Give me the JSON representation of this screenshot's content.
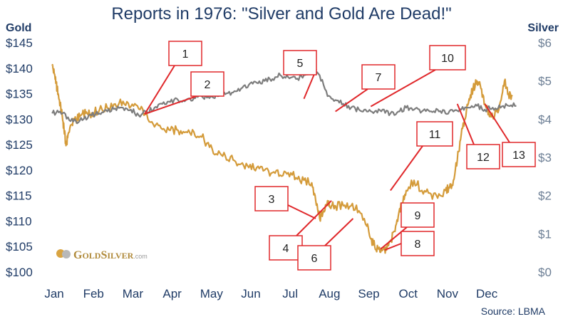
{
  "colors": {
    "gold": "#d49b3a",
    "silver": "#7d7d7d",
    "title": "#1f3b66",
    "annotation": "#e0282b"
  },
  "chart_data": {
    "type": "line",
    "title": "Reports in 1976: \"Silver and Gold Are Dead!\"",
    "ylabel_left": "Gold",
    "ylabel_right": "Silver",
    "ylim_left": [
      100,
      145
    ],
    "ylim_right": [
      0,
      6
    ],
    "y_ticks_left": [
      "$100",
      "$105",
      "$110",
      "$115",
      "$120",
      "$125",
      "$130",
      "$135",
      "$140",
      "$145"
    ],
    "y_ticks_right": [
      "$0",
      "$1",
      "$2",
      "$3",
      "$4",
      "$5",
      "$6"
    ],
    "x_ticks": [
      "Jan",
      "Feb",
      "Mar",
      "Apr",
      "May",
      "Jun",
      "Jul",
      "Aug",
      "Sep",
      "Oct",
      "Nov",
      "Dec"
    ],
    "source": "Source: LBMA",
    "logo": "GoldSilver.com",
    "series": [
      {
        "name": "Gold",
        "axis": "left",
        "x": [
          0.0,
          0.05,
          0.1,
          0.15,
          0.2,
          0.25,
          0.3,
          0.35,
          0.4,
          0.5,
          0.6,
          0.7,
          0.8,
          0.9,
          1.0,
          1.2,
          1.4,
          1.6,
          1.8,
          2.0,
          2.2,
          2.4,
          2.6,
          2.8,
          3.0,
          3.2,
          3.4,
          3.6,
          3.8,
          4.0,
          4.2,
          4.4,
          4.6,
          4.8,
          5.0,
          5.2,
          5.4,
          5.6,
          5.8,
          6.0,
          6.2,
          6.4,
          6.6,
          6.7,
          6.8,
          6.9,
          7.0,
          7.1,
          7.2,
          7.4,
          7.6,
          7.8,
          8.0,
          8.1,
          8.2,
          8.3,
          8.4,
          8.5,
          8.6,
          8.7,
          8.8,
          8.9,
          9.0,
          9.2,
          9.4,
          9.6,
          9.8,
          10.0,
          10.1,
          10.2,
          10.3,
          10.4,
          10.5,
          10.6,
          10.7,
          10.8,
          10.9,
          11.0,
          11.1,
          11.2,
          11.3,
          11.4,
          11.5,
          11.6,
          11.7
        ],
        "y": [
          140.5,
          139.0,
          137.0,
          135.0,
          133.0,
          131.0,
          128.0,
          124.8,
          127.0,
          129.0,
          130.0,
          130.5,
          131.0,
          131.0,
          131.2,
          131.8,
          132.2,
          133.0,
          133.5,
          132.5,
          132.0,
          131.2,
          128.5,
          128.0,
          127.8,
          127.8,
          127.5,
          127.5,
          126.5,
          124.5,
          123.0,
          122.8,
          122.0,
          121.2,
          120.5,
          120.5,
          120.0,
          119.5,
          119.0,
          119.5,
          118.5,
          118.0,
          117.5,
          114.0,
          110.5,
          112.0,
          114.0,
          113.0,
          113.0,
          113.0,
          113.0,
          112.0,
          109.0,
          106.5,
          105.0,
          104.5,
          104.3,
          104.3,
          106.0,
          108.0,
          111.0,
          113.5,
          116.0,
          118.0,
          116.0,
          115.5,
          114.5,
          116.0,
          116.5,
          118.0,
          122.0,
          127.0,
          130.0,
          134.0,
          136.0,
          137.5,
          136.0,
          133.0,
          131.5,
          130.5,
          131.5,
          133.5,
          137.5,
          135.0,
          134.5
        ]
      },
      {
        "name": "Silver",
        "axis": "right",
        "x": [
          0.0,
          0.2,
          0.4,
          0.6,
          0.8,
          1.0,
          1.2,
          1.4,
          1.6,
          1.8,
          2.0,
          2.2,
          2.4,
          2.6,
          2.8,
          3.0,
          3.2,
          3.4,
          3.6,
          3.8,
          4.0,
          4.2,
          4.4,
          4.6,
          4.8,
          5.0,
          5.2,
          5.4,
          5.6,
          5.8,
          6.0,
          6.2,
          6.4,
          6.6,
          6.8,
          7.0,
          7.2,
          7.4,
          7.6,
          7.8,
          8.0,
          8.2,
          8.4,
          8.6,
          8.8,
          9.0,
          9.2,
          9.4,
          9.6,
          9.8,
          10.0,
          10.2,
          10.4,
          10.6,
          10.8,
          11.0,
          11.2,
          11.4,
          11.6,
          11.8
        ],
        "y": [
          4.15,
          4.2,
          4.05,
          3.95,
          4.0,
          4.1,
          4.15,
          4.2,
          4.28,
          4.3,
          4.25,
          4.1,
          4.2,
          4.3,
          4.4,
          4.45,
          4.5,
          4.5,
          4.55,
          4.6,
          4.55,
          4.6,
          4.65,
          4.7,
          4.8,
          4.9,
          4.95,
          5.0,
          5.05,
          5.15,
          5.1,
          5.05,
          5.15,
          5.25,
          5.15,
          4.6,
          4.5,
          4.4,
          4.3,
          4.25,
          4.2,
          4.2,
          4.25,
          4.15,
          4.2,
          4.3,
          4.25,
          4.2,
          4.2,
          4.25,
          4.15,
          4.2,
          4.25,
          4.3,
          4.35,
          4.25,
          4.3,
          4.3,
          4.35,
          4.35
        ]
      }
    ],
    "annotations": [
      {
        "label": "1",
        "point": [
          2.35,
          131.0
        ]
      },
      {
        "label": "2",
        "point": [
          2.35,
          131.0
        ]
      },
      {
        "label": "3",
        "point": [
          6.7,
          110.5
        ]
      },
      {
        "label": "4",
        "point": [
          7.1,
          114.0
        ]
      },
      {
        "label": "5",
        "point": [
          6.4,
          134.0
        ]
      },
      {
        "label": "6",
        "point": [
          7.65,
          110.5
        ]
      },
      {
        "label": "7",
        "point": [
          7.2,
          131.5
        ]
      },
      {
        "label": "8",
        "point": [
          8.45,
          104.3
        ]
      },
      {
        "label": "9",
        "point": [
          8.35,
          104.5
        ]
      },
      {
        "label": "10",
        "point": [
          8.1,
          132.5
        ]
      },
      {
        "label": "11",
        "point": [
          8.6,
          116.0
        ]
      },
      {
        "label": "12",
        "point": [
          10.3,
          133.0
        ]
      },
      {
        "label": "13",
        "point": [
          11.0,
          133.0
        ]
      }
    ]
  }
}
